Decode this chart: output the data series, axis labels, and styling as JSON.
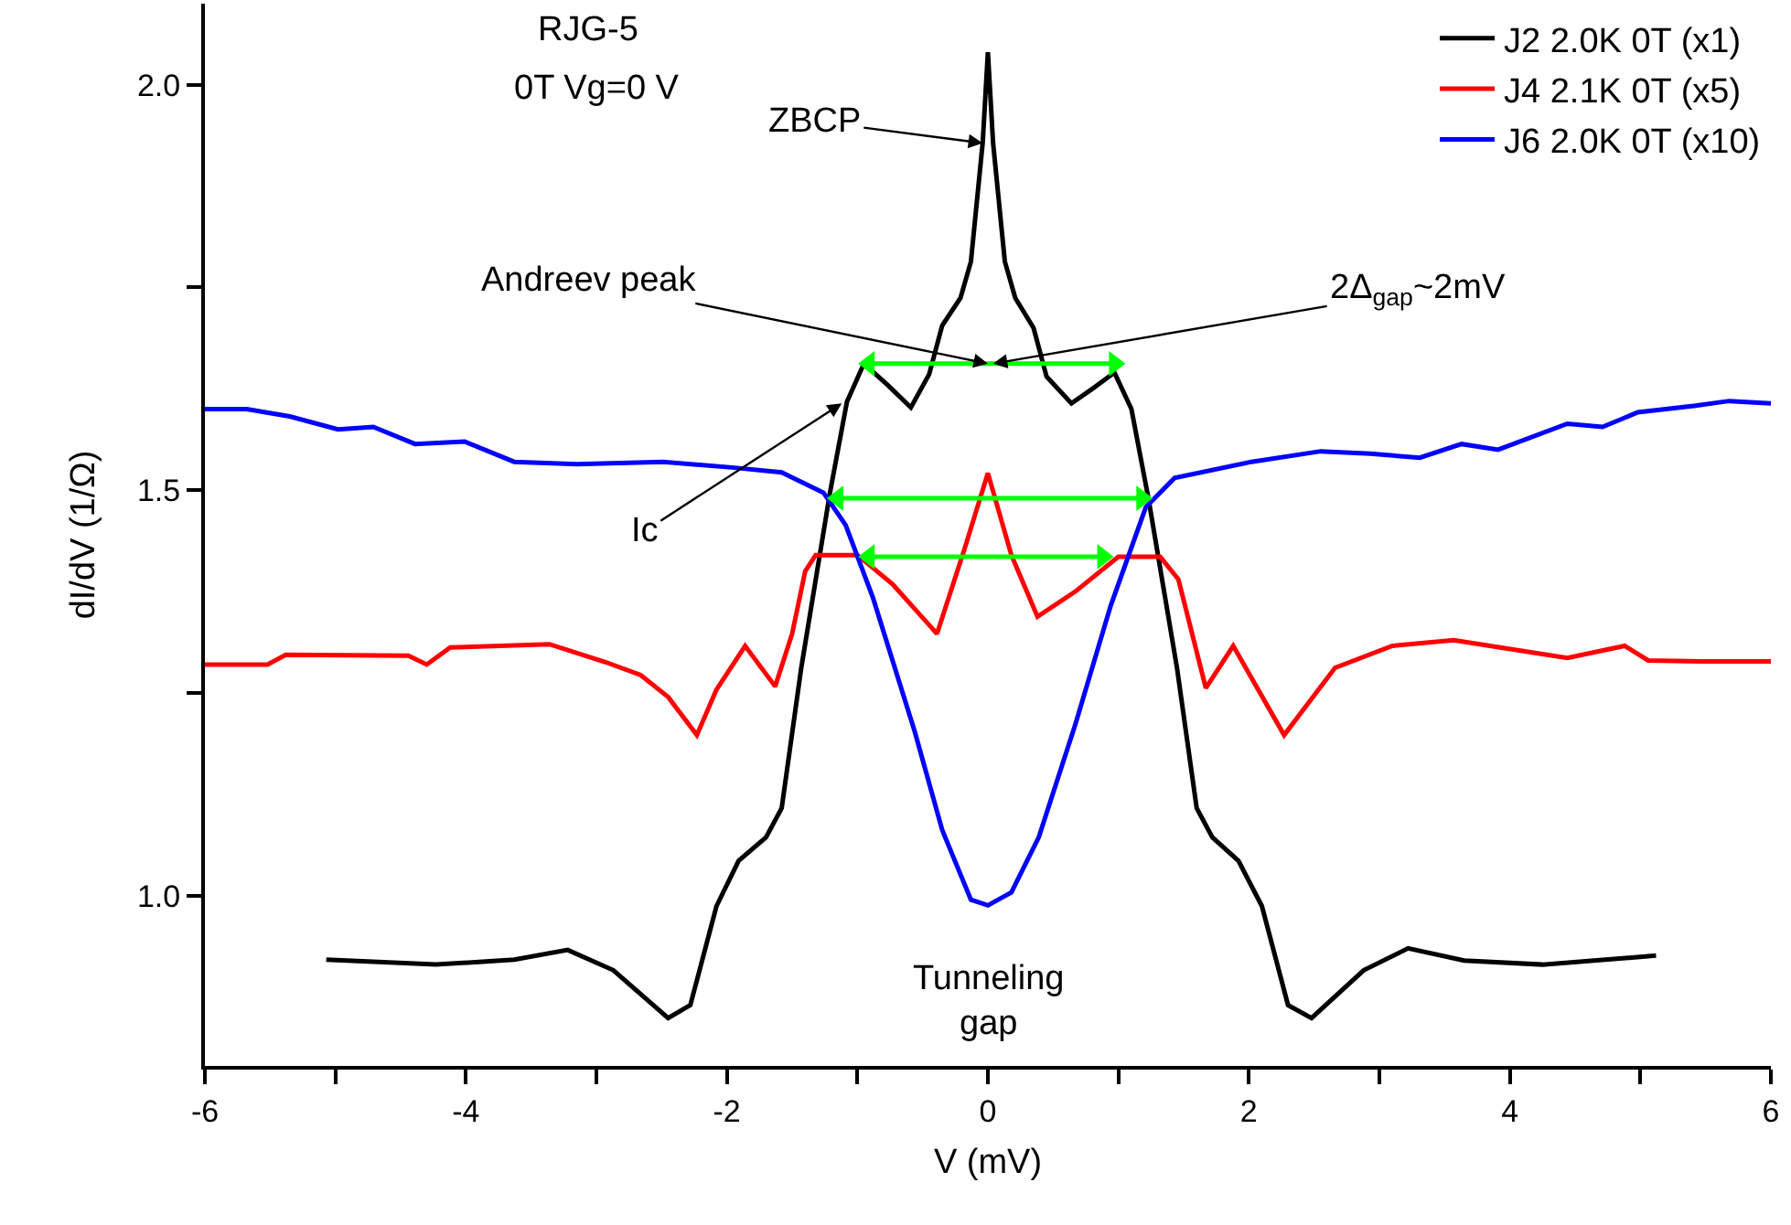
{
  "chart_data": {
    "type": "line",
    "xlabel": "V (mV)",
    "ylabel": "dI/dV (1/Ω)",
    "xlim": [
      -6,
      6
    ],
    "ylim": [
      0.79,
      2.1
    ],
    "xticks": [
      -6,
      {
        "value": -5,
        "label": null
      },
      -4,
      {
        "value": -3,
        "label": null
      },
      -2,
      {
        "value": -1,
        "label": null
      },
      0,
      {
        "value": 1,
        "label": null
      },
      2,
      {
        "value": 3,
        "label": null
      },
      4,
      {
        "value": 5,
        "label": null
      },
      6
    ],
    "yticks": [
      {
        "value": 1.0,
        "label": "1.0"
      },
      {
        "value": 1.25,
        "label": null
      },
      {
        "value": 1.5,
        "label": "1.5"
      },
      {
        "value": 1.75,
        "label": null
      },
      {
        "value": 2.0,
        "label": "2.0"
      }
    ],
    "grid": false,
    "legend": "top right",
    "marker": "none",
    "line_style": "solid",
    "series": [
      {
        "name": "J2 2.0K 0T (x1)",
        "color": "#000000",
        "x": [
          -5.07,
          -4.23,
          -3.63,
          -3.22,
          -2.87,
          -2.45,
          -2.28,
          -2.08,
          -1.91,
          -1.7,
          -1.58,
          -1.43,
          -1.21,
          -1.08,
          -0.95,
          -0.77,
          -0.59,
          -0.45,
          -0.35,
          -0.21,
          -0.13,
          -0.04,
          0,
          0.04,
          0.13,
          0.21,
          0.35,
          0.45,
          0.64,
          0.8,
          0.97,
          1.1,
          1.23,
          1.45,
          1.6,
          1.72,
          1.92,
          2.1,
          2.3,
          2.48,
          2.88,
          3.22,
          3.65,
          4.25,
          5.12
        ],
        "values": [
          0.921,
          0.915,
          0.921,
          0.933,
          0.908,
          0.849,
          0.865,
          0.987,
          1.043,
          1.072,
          1.108,
          1.281,
          1.497,
          1.609,
          1.656,
          1.63,
          1.602,
          1.643,
          1.703,
          1.737,
          1.782,
          1.928,
          2.04,
          1.928,
          1.782,
          1.737,
          1.7,
          1.64,
          1.607,
          1.625,
          1.645,
          1.6,
          1.49,
          1.28,
          1.108,
          1.072,
          1.043,
          0.987,
          0.865,
          0.849,
          0.908,
          0.935,
          0.92,
          0.915,
          0.926
        ]
      },
      {
        "name": "J4 2.1K 0T (x5)",
        "color": "#ff0000",
        "x": [
          -6,
          -5.52,
          -5.38,
          -4.44,
          -4.3,
          -4.12,
          -3.36,
          -2.93,
          -2.66,
          -2.45,
          -2.23,
          -2.08,
          -1.86,
          -1.63,
          -1.5,
          -1.4,
          -1.32,
          -1,
          -0.73,
          -0.39,
          -0.18,
          0,
          0.18,
          0.38,
          0.67,
          1.0,
          1.32,
          1.46,
          1.67,
          1.88,
          2.27,
          2.66,
          3.1,
          3.57,
          3.97,
          4.44,
          4.88,
          5.06,
          5.47,
          6
        ],
        "values": [
          1.285,
          1.285,
          1.297,
          1.296,
          1.285,
          1.306,
          1.31,
          1.288,
          1.272,
          1.245,
          1.198,
          1.254,
          1.308,
          1.258,
          1.323,
          1.4,
          1.42,
          1.42,
          1.384,
          1.323,
          1.427,
          1.521,
          1.42,
          1.344,
          1.375,
          1.418,
          1.418,
          1.39,
          1.256,
          1.308,
          1.198,
          1.281,
          1.308,
          1.315,
          1.305,
          1.293,
          1.308,
          1.29,
          1.289,
          1.289
        ]
      },
      {
        "name": "J6 2.0K 0T (x10)",
        "color": "#0000ff",
        "x": [
          -6,
          -5.68,
          -5.35,
          -4.98,
          -4.71,
          -4.39,
          -4.01,
          -3.63,
          -3.15,
          -2.49,
          -1.96,
          -1.58,
          -1.49,
          -1.26,
          -1.09,
          -0.88,
          -0.56,
          -0.35,
          -0.13,
          0,
          0.18,
          0.39,
          0.67,
          0.94,
          1.21,
          1.43,
          2.02,
          2.55,
          2.93,
          3.31,
          3.63,
          3.91,
          4.44,
          4.71,
          4.98,
          5.41,
          5.68,
          6
        ],
        "values": [
          1.6,
          1.6,
          1.591,
          1.575,
          1.578,
          1.557,
          1.56,
          1.535,
          1.532,
          1.535,
          1.528,
          1.522,
          1.515,
          1.497,
          1.457,
          1.367,
          1.202,
          1.081,
          0.995,
          0.988,
          1.004,
          1.072,
          1.211,
          1.357,
          1.479,
          1.515,
          1.535,
          1.548,
          1.545,
          1.54,
          1.557,
          1.55,
          1.582,
          1.578,
          1.596,
          1.604,
          1.61,
          1.607
        ]
      },
      {
        "color": "#00ff00",
        "marker": "triangle",
        "x": [
          -0.91,
          0.97
        ],
        "values": [
          1.656,
          1.656
        ]
      },
      {
        "color": "#00ff00",
        "marker": "triangle",
        "x": [
          -1.15,
          1.18
        ],
        "values": [
          1.49,
          1.49
        ]
      },
      {
        "color": "#00ff00",
        "marker": "triangle",
        "x": [
          -0.91,
          0.88
        ],
        "values": [
          1.418,
          1.418
        ]
      }
    ],
    "annotations": [
      "RJG-5",
      "0T Vg=0 V",
      "Tunneling\ngap",
      {
        "text": "ZBCP",
        "x": -0.04,
        "y": 1.928
      },
      {
        "text": "Andreev peak",
        "x": 0,
        "y": 1.656
      },
      {
        "text": "Ic",
        "x": -1.12,
        "y": 1.607
      },
      {
        "text": "2Δ$_{gap}$~2mV",
        "x": 0.04,
        "y": 1.656
      }
    ]
  }
}
